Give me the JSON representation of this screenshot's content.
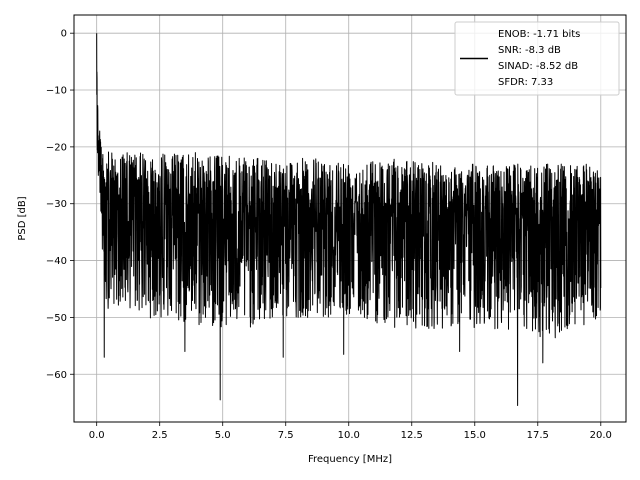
{
  "chart_data": {
    "type": "line",
    "title": "",
    "xlabel": "Frequency [MHz]",
    "ylabel": "PSD [dB]",
    "xlim": [
      -0.9,
      21.0
    ],
    "ylim": [
      -68.4,
      3.2
    ],
    "x_ticks": [
      0.0,
      2.5,
      5.0,
      7.5,
      10.0,
      12.5,
      15.0,
      17.5,
      20.0
    ],
    "x_tick_labels": [
      "0.0",
      "2.5",
      "5.0",
      "7.5",
      "10.0",
      "12.5",
      "15.0",
      "17.5",
      "20.0"
    ],
    "y_ticks": [
      0,
      -10,
      -20,
      -30,
      -40,
      -50,
      -60
    ],
    "y_tick_labels": [
      "0",
      "−10",
      "−20",
      "−30",
      "−40",
      "−50",
      "−60"
    ],
    "grid": true,
    "legend_position": "top-right",
    "series": [
      {
        "name": "ENOB: -1.71 bits\nSNR: -8.3 dB\nSINAD: -8.52 dB\nSFDR: 7.33",
        "color": "#000000",
        "description_points": {
          "x": [
            0.0,
            0.02,
            0.05,
            0.1,
            0.15,
            0.2,
            0.3,
            0.5,
            1.0,
            2.0,
            4.0,
            6.0,
            8.0,
            10.0,
            12.0,
            14.0,
            16.0,
            18.0,
            20.0
          ],
          "y_upper": [
            0.0,
            -8.0,
            -13.0,
            -16.0,
            -18.0,
            -20.0,
            -20.0,
            -21.0,
            -21.0,
            -21.0,
            -21.0,
            -22.0,
            -22.0,
            -22.0,
            -22.0,
            -23.0,
            -23.0,
            -23.0,
            -23.0
          ],
          "y_lower": [
            -8.0,
            -22.0,
            -26.0,
            -26.0,
            -30.0,
            -36.0,
            -50.0,
            -48.0,
            -48.0,
            -50.0,
            -52.0,
            -52.0,
            -50.0,
            -50.0,
            -52.0,
            -52.0,
            -52.0,
            -54.0,
            -50.0
          ]
        },
        "notable_dips": [
          {
            "x": 0.3,
            "y": -57.0
          },
          {
            "x": 3.5,
            "y": -56.0
          },
          {
            "x": 4.9,
            "y": -64.5
          },
          {
            "x": 7.4,
            "y": -57.0
          },
          {
            "x": 9.8,
            "y": -56.5
          },
          {
            "x": 14.4,
            "y": -56.0
          },
          {
            "x": 16.7,
            "y": -65.5
          },
          {
            "x": 17.7,
            "y": -58.0
          }
        ]
      }
    ],
    "legend": {
      "lines": [
        "ENOB: -1.71 bits",
        "SNR: -8.3 dB",
        "SINAD: -8.52 dB",
        "SFDR: 7.33"
      ]
    }
  }
}
